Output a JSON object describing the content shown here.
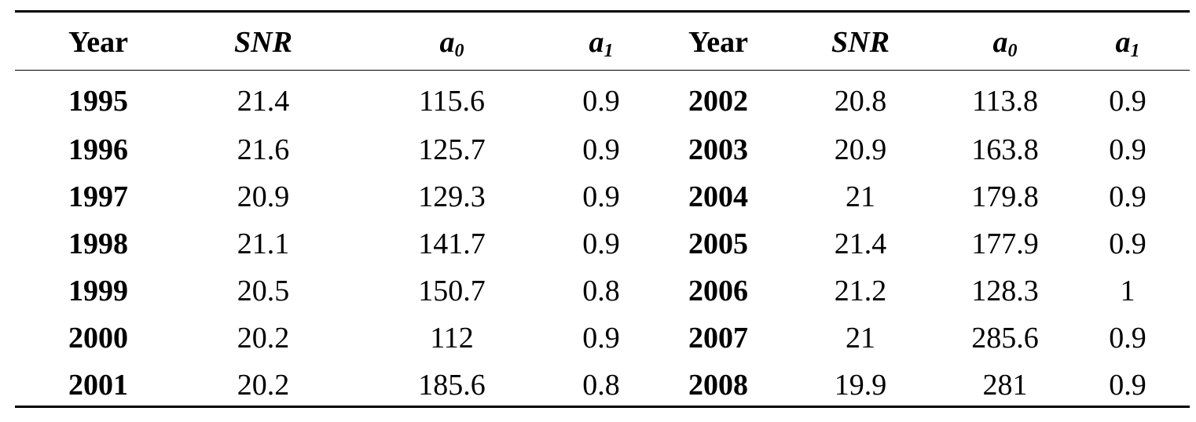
{
  "headers": {
    "year_left": "Year",
    "snr_left": "SNR",
    "a0_left_base": "a",
    "a0_left_sub": "0",
    "a1_left_base": "a",
    "a1_left_sub": "1",
    "year_right": "Year",
    "snr_right": "SNR",
    "a0_right_base": "a",
    "a0_right_sub": "0",
    "a1_right_base": "a",
    "a1_right_sub": "1"
  },
  "rows": [
    {
      "year_l": "1995",
      "snr_l": "21.4",
      "a0_l": "115.6",
      "a1_l": "0.9",
      "year_r": "2002",
      "snr_r": "20.8",
      "a0_r": "113.8",
      "a1_r": "0.9"
    },
    {
      "year_l": "1996",
      "snr_l": "21.6",
      "a0_l": "125.7",
      "a1_l": "0.9",
      "year_r": "2003",
      "snr_r": "20.9",
      "a0_r": "163.8",
      "a1_r": "0.9"
    },
    {
      "year_l": "1997",
      "snr_l": "20.9",
      "a0_l": "129.3",
      "a1_l": "0.9",
      "year_r": "2004",
      "snr_r": "21",
      "a0_r": "179.8",
      "a1_r": "0.9"
    },
    {
      "year_l": "1998",
      "snr_l": "21.1",
      "a0_l": "141.7",
      "a1_l": "0.9",
      "year_r": "2005",
      "snr_r": "21.4",
      "a0_r": "177.9",
      "a1_r": "0.9"
    },
    {
      "year_l": "1999",
      "snr_l": "20.5",
      "a0_l": "150.7",
      "a1_l": "0.8",
      "year_r": "2006",
      "snr_r": "21.2",
      "a0_r": "128.3",
      "a1_r": "1"
    },
    {
      "year_l": "2000",
      "snr_l": "20.2",
      "a0_l": "112",
      "a1_l": "0.9",
      "year_r": "2007",
      "snr_r": "21",
      "a0_r": "285.6",
      "a1_r": "0.9"
    },
    {
      "year_l": "2001",
      "snr_l": "20.2",
      "a0_l": "185.6",
      "a1_l": "0.8",
      "year_r": "2008",
      "snr_r": "19.9",
      "a0_r": "281",
      "a1_r": "0.9"
    }
  ]
}
